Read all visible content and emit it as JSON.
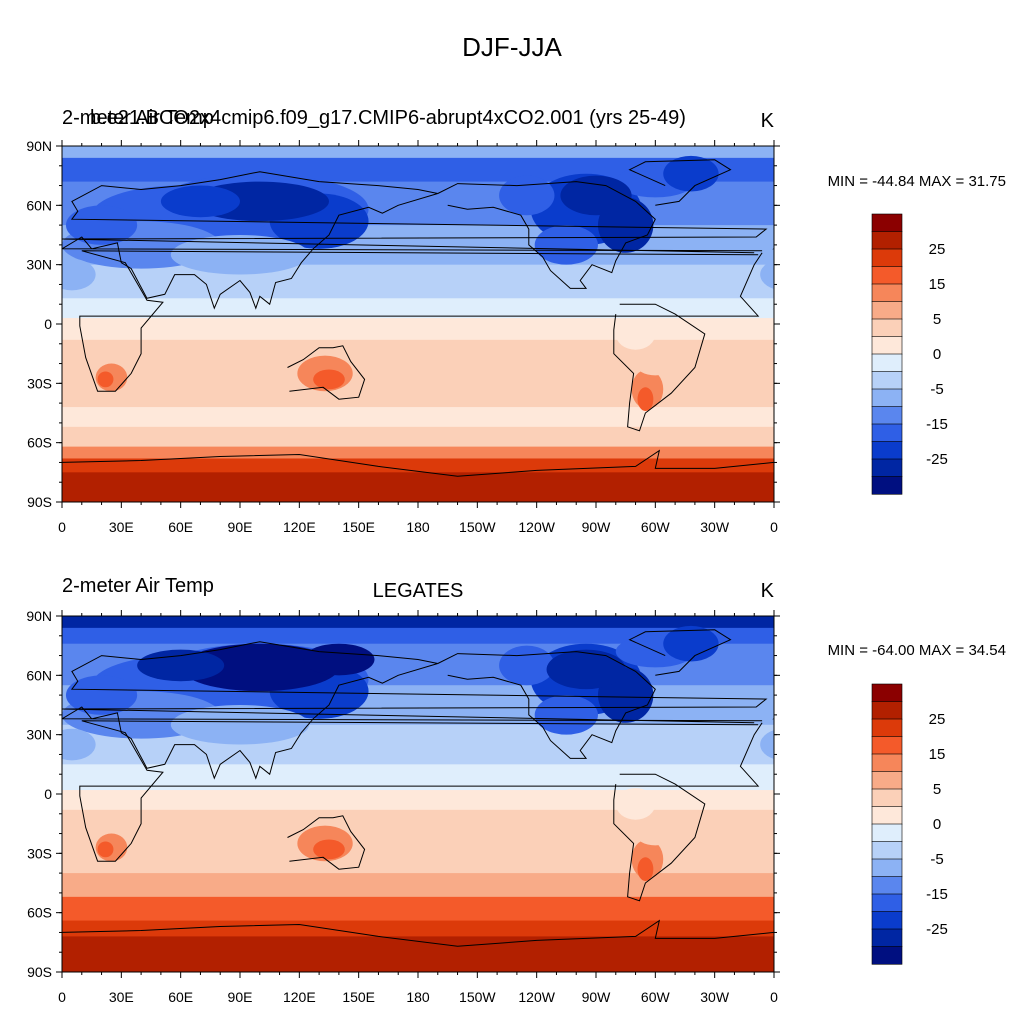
{
  "figure": {
    "title": "DJF-JJA"
  },
  "axes": {
    "lat_labels": [
      "90N",
      "60N",
      "30N",
      "0",
      "30S",
      "60S",
      "90S"
    ],
    "lon_labels": [
      "0",
      "30E",
      "60E",
      "90E",
      "120E",
      "150E",
      "180",
      "150W",
      "120W",
      "90W",
      "60W",
      "30W",
      "0"
    ]
  },
  "colorbar": {
    "levels": [
      -30,
      -25,
      -20,
      -15,
      -10,
      -5,
      0,
      5,
      10,
      15,
      20,
      25,
      30
    ],
    "labels": [
      "25",
      "15",
      "5",
      "0",
      "-5",
      "-15",
      "-25"
    ],
    "colors": [
      "#8b0000",
      "#b22000",
      "#dc3a0a",
      "#f45a2a",
      "#f6865a",
      "#f8ab88",
      "#fbd0b8",
      "#fee8da",
      "#dfeefc",
      "#b7d1f8",
      "#8cb2f4",
      "#5a86ee",
      "#2f5fe6",
      "#0a3ccc",
      "#0026a3",
      "#000f80"
    ]
  },
  "panels": [
    {
      "left_title_behind": "2-meter Air Temp",
      "center_title": "b.e21.BCO2x4cmip6.f09_g17.CMIP6-abrupt4xCO2.001 (yrs 25-49)",
      "units": "K",
      "minmax": "MIN = -44.84 MAX =  31.75"
    },
    {
      "left_title": "2-meter Air Temp",
      "center_title": "LEGATES",
      "units": "K",
      "minmax": "MIN = -64.00 MAX =  34.54"
    }
  ],
  "chart_data": [
    {
      "type": "heatmap",
      "title": "b.e21.BCO2x4cmip6.f09_g17.CMIP6-abrupt4xCO2.001 (yrs 25-49)",
      "variable": "2-meter Air Temp",
      "units": "K",
      "season_difference": "DJF-JJA",
      "lon_range": [
        0,
        360
      ],
      "lat_range": [
        -90,
        90
      ],
      "min": -44.84,
      "max": 31.75,
      "contour_levels": [
        -30,
        -25,
        -20,
        -15,
        -10,
        -5,
        0,
        5,
        10,
        15,
        20,
        25,
        30
      ]
    },
    {
      "type": "heatmap",
      "title": "LEGATES",
      "variable": "2-meter Air Temp",
      "units": "K",
      "season_difference": "DJF-JJA",
      "lon_range": [
        0,
        360
      ],
      "lat_range": [
        -90,
        90
      ],
      "min": -64.0,
      "max": 34.54,
      "contour_levels": [
        -30,
        -25,
        -20,
        -15,
        -10,
        -5,
        0,
        5,
        10,
        15,
        20,
        25,
        30
      ]
    }
  ]
}
